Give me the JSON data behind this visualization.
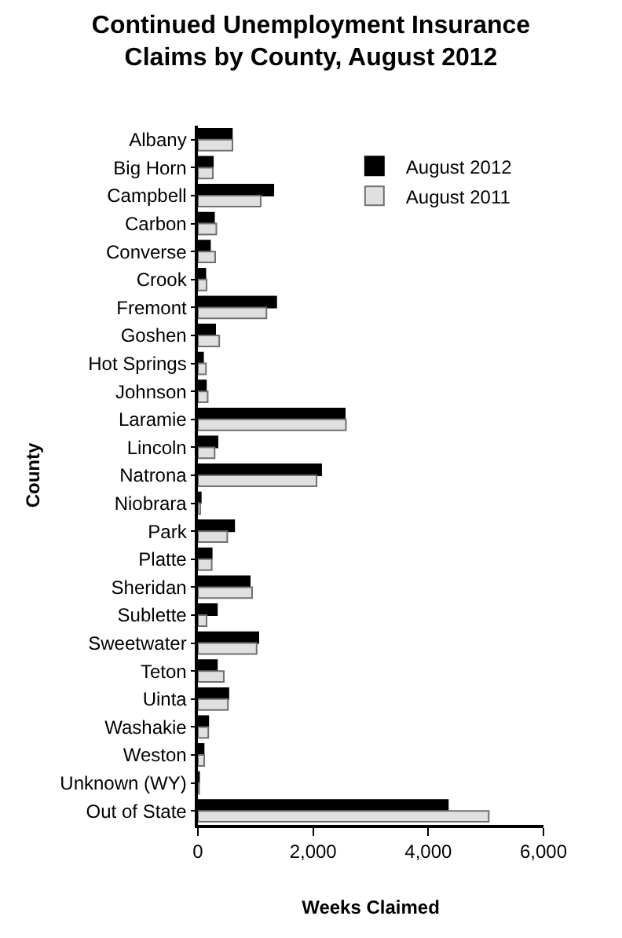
{
  "chart_data": {
    "type": "bar",
    "orientation": "horizontal",
    "title": "Continued Unemployment Insurance\nClaims by County, August 2012",
    "xlabel": "Weeks Claimed",
    "ylabel": "County",
    "categories": [
      "Albany",
      "Big Horn",
      "Campbell",
      "Carbon",
      "Converse",
      "Crook",
      "Fremont",
      "Goshen",
      "Hot Springs",
      "Johnson",
      "Laramie",
      "Lincoln",
      "Natrona",
      "Niobrara",
      "Park",
      "Platte",
      "Sheridan",
      "Sublette",
      "Sweetwater",
      "Teton",
      "Uinta",
      "Washakie",
      "Weston",
      "Unknown (WY)",
      "Out of State"
    ],
    "series": [
      {
        "name": "August 2012",
        "color": "#000000",
        "values": [
          590,
          260,
          1310,
          280,
          210,
          130,
          1360,
          300,
          90,
          140,
          2550,
          340,
          2140,
          50,
          630,
          240,
          900,
          330,
          1050,
          330,
          530,
          180,
          100,
          20,
          4340
        ]
      },
      {
        "name": "August 2011",
        "color": "#e0e0e0",
        "values": [
          600,
          260,
          1090,
          320,
          300,
          150,
          1190,
          370,
          140,
          170,
          2570,
          290,
          2060,
          40,
          510,
          240,
          940,
          150,
          1020,
          450,
          520,
          180,
          110,
          20,
          5050
        ]
      }
    ],
    "xlim": [
      0,
      6000
    ],
    "xticks": [
      0,
      {
        "value": 2000,
        "label": "2,000"
      },
      {
        "value": 4000,
        "label": "4,000"
      },
      {
        "value": 6000,
        "label": "6,000"
      }
    ],
    "grid": false,
    "legend": "top right"
  }
}
